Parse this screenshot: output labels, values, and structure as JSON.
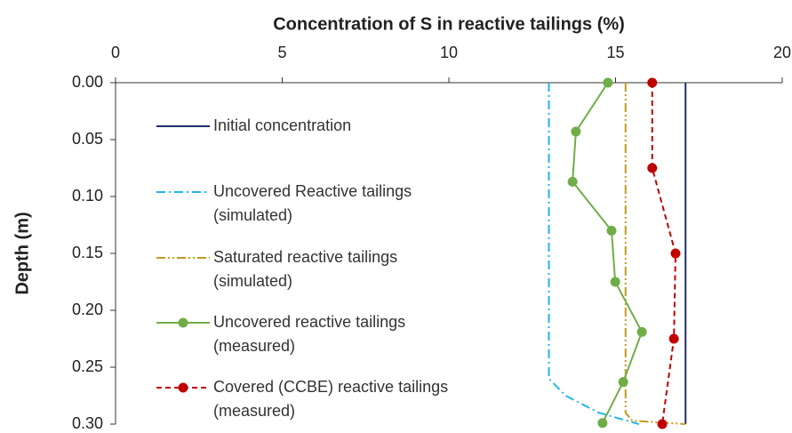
{
  "chart_data": {
    "type": "line",
    "title": "Concentration of S in reactive tailings (%)",
    "y_label": "Depth (m)",
    "xlim": [
      0,
      20
    ],
    "xticks": [
      0,
      5,
      10,
      15,
      20
    ],
    "x_axis_position": "top",
    "ylim": [
      0,
      0.3
    ],
    "y_inverted": true,
    "yticks": [
      {
        "value": 0,
        "label": "0.00"
      },
      0.05,
      {
        "value": 0.1,
        "label": "0.10"
      },
      0.15,
      {
        "value": 0.2,
        "label": "0.20"
      },
      0.25,
      {
        "value": 0.3,
        "label": "0.30"
      }
    ],
    "series": [
      {
        "name": "Initial concentration",
        "color": "#1f2d6b",
        "dash": "solid",
        "marker": false,
        "x": [
          17.1,
          17.1
        ],
        "values": [
          0,
          0.3
        ]
      },
      {
        "name": "Uncovered Reactive tailings (simulated)",
        "color": "#1fb6e8",
        "dash": "dashdot",
        "marker": false,
        "x": [
          13.0,
          13.0,
          13.5,
          14.5,
          15.7
        ],
        "values": [
          0,
          0.26,
          0.275,
          0.29,
          0.3
        ]
      },
      {
        "name": "Saturated reactive tailings (simulated)",
        "color": "#c49a1e",
        "dash": "dashdotdot",
        "marker": false,
        "x": [
          15.3,
          15.3,
          15.5,
          17.1
        ],
        "values": [
          0,
          0.29,
          0.297,
          0.3
        ]
      },
      {
        "name": "Uncovered reactive tailings (measured)",
        "color": "#70ad47",
        "dash": "solid",
        "marker": true,
        "x": [
          14.77,
          13.81,
          13.71,
          14.88,
          14.99,
          15.79,
          15.23,
          14.61
        ],
        "values": [
          0,
          0.043,
          0.087,
          0.13,
          0.175,
          0.219,
          0.263,
          0.299
        ]
      },
      {
        "name": "Covered (CCBE) reactive tailings (measured)",
        "color": "#c00000",
        "dash": "dashed",
        "marker": true,
        "x": [
          16.1,
          16.1,
          16.8,
          16.75,
          16.4
        ],
        "values": [
          0,
          0.075,
          0.15,
          0.225,
          0.3
        ]
      }
    ]
  }
}
